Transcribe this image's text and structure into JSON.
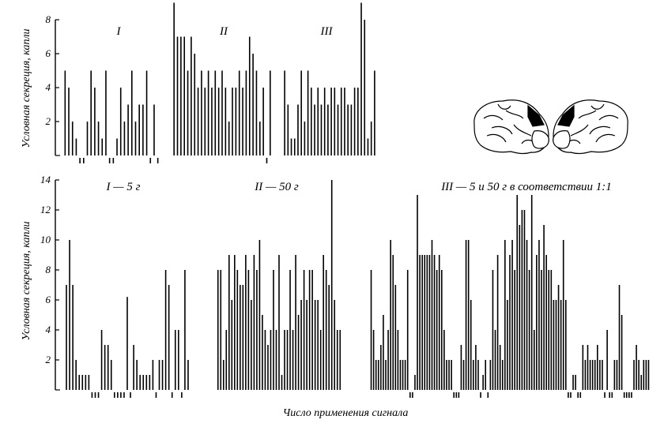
{
  "figure": {
    "xlabel": "Число применения сигнала"
  },
  "chart_data": [
    {
      "type": "bar",
      "ylabel": "Условная секреция, капли",
      "ylim": [
        0,
        8
      ],
      "yticks": [
        2,
        4,
        6,
        8
      ],
      "panels": [
        {
          "title": "I",
          "values": [
            5,
            4,
            2,
            1,
            0,
            0,
            2,
            5,
            4,
            2,
            1,
            5,
            0,
            0,
            1,
            4,
            2,
            3,
            5,
            2,
            3,
            3,
            5,
            0,
            3,
            0
          ]
        },
        {
          "title": "II",
          "values": [
            9,
            7,
            7,
            7,
            5,
            7,
            6,
            4,
            5,
            4,
            5,
            4,
            5,
            4,
            5,
            4,
            2,
            4,
            4,
            5,
            4,
            5,
            7,
            6,
            5,
            2,
            4,
            0,
            5
          ]
        },
        {
          "title": "III",
          "values": [
            5,
            3,
            1,
            1,
            3,
            5,
            2,
            5,
            4,
            3,
            4,
            3,
            4,
            3,
            4,
            4,
            3,
            4,
            4,
            3,
            3,
            4,
            4,
            9,
            8,
            1,
            2,
            5
          ]
        }
      ]
    },
    {
      "type": "bar",
      "ylabel": "Условная секреция, капли",
      "ylim": [
        0,
        14
      ],
      "yticks": [
        2,
        4,
        6,
        8,
        10,
        12,
        14
      ],
      "panels": [
        {
          "title": "I — 5 г",
          "values": [
            7,
            10,
            7,
            2,
            1,
            1,
            1,
            1,
            0,
            0,
            0,
            4,
            3,
            3,
            2,
            0,
            0,
            0,
            0,
            6.2,
            0,
            3,
            2,
            1,
            1,
            1,
            1,
            2,
            0,
            2,
            2,
            8,
            7,
            0,
            4,
            4,
            0,
            8,
            2
          ]
        },
        {
          "title": "II — 50 г",
          "values": [
            8,
            8,
            2,
            4,
            9,
            6,
            9,
            8,
            7,
            7,
            9,
            8,
            6,
            9,
            8,
            10,
            5,
            4,
            3,
            4,
            8,
            4,
            9,
            1,
            4,
            4,
            8,
            4,
            9,
            5,
            6,
            8,
            6,
            8,
            8,
            6,
            6,
            4,
            9,
            8,
            7,
            14,
            6,
            4,
            4
          ]
        },
        {
          "title": "III — 5 и 50 г в соответствии 1:1",
          "values": [
            8,
            4,
            2,
            2,
            3,
            5,
            2,
            4,
            10,
            9,
            7,
            4,
            2,
            2,
            2,
            8,
            0,
            0,
            1,
            13,
            9,
            9,
            9,
            9,
            9,
            10,
            9,
            8,
            9,
            8,
            4,
            2,
            2,
            2,
            0,
            0,
            0,
            3,
            2,
            10,
            10,
            6,
            2,
            3,
            2,
            0,
            1,
            2,
            0,
            2,
            8,
            4,
            9,
            3,
            2,
            10,
            6,
            9,
            10,
            8,
            13,
            11,
            12,
            12,
            10,
            8,
            13,
            4,
            9,
            10,
            8,
            11,
            9,
            8,
            8,
            6,
            6,
            7,
            6,
            10,
            6,
            0,
            0,
            1,
            1,
            0,
            0,
            3,
            2,
            3,
            2,
            2,
            2,
            3,
            2,
            2,
            0,
            4,
            0,
            0,
            2,
            2,
            7,
            5,
            0,
            0,
            0,
            0,
            2,
            3,
            2,
            1,
            2,
            2,
            2
          ]
        }
      ]
    }
  ]
}
